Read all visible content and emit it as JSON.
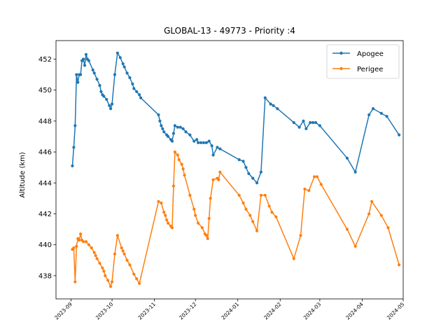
{
  "chart_data": {
    "type": "line",
    "title": "GLOBAL-13 - 49773 - Priority :4",
    "xlabel": "",
    "ylabel": "Altitude (km)",
    "ylim": [
      436.5,
      453.2
    ],
    "xlim": [
      "2023-08-21",
      "2024-05-01"
    ],
    "yticks": [
      438,
      440,
      442,
      444,
      446,
      448,
      450,
      452
    ],
    "xticks": [
      "2023-09",
      "2023-10",
      "2023-11",
      "2023-12",
      "2024-01",
      "2024-02",
      "2024-03",
      "2024-04",
      "2024-05"
    ],
    "grid": false,
    "legend_position": "top-right",
    "series": [
      {
        "name": "Apogee",
        "color": "#1f77b4",
        "points": [
          [
            "2023-09-02",
            445.1
          ],
          [
            "2023-09-03",
            446.3
          ],
          [
            "2023-09-04",
            447.7
          ],
          [
            "2023-09-05",
            451.0
          ],
          [
            "2023-09-06",
            450.5
          ],
          [
            "2023-09-07",
            451.0
          ],
          [
            "2023-09-08",
            451.0
          ],
          [
            "2023-09-09",
            451.9
          ],
          [
            "2023-09-10",
            452.0
          ],
          [
            "2023-09-11",
            451.6
          ],
          [
            "2023-09-12",
            452.3
          ],
          [
            "2023-09-13",
            452.0
          ],
          [
            "2023-09-14",
            451.9
          ],
          [
            "2023-09-17",
            451.3
          ],
          [
            "2023-09-18",
            451.1
          ],
          [
            "2023-09-20",
            450.7
          ],
          [
            "2023-09-22",
            450.3
          ],
          [
            "2023-09-23",
            449.9
          ],
          [
            "2023-09-24",
            449.7
          ],
          [
            "2023-09-25",
            449.6
          ],
          [
            "2023-09-27",
            449.4
          ],
          [
            "2023-09-29",
            449.0
          ],
          [
            "2023-09-30",
            448.8
          ],
          [
            "2023-10-01",
            449.1
          ],
          [
            "2023-10-03",
            451.0
          ],
          [
            "2023-10-05",
            452.4
          ],
          [
            "2023-10-07",
            452.1
          ],
          [
            "2023-10-09",
            451.7
          ],
          [
            "2023-10-10",
            451.5
          ],
          [
            "2023-10-12",
            451.1
          ],
          [
            "2023-10-14",
            450.8
          ],
          [
            "2023-10-16",
            450.4
          ],
          [
            "2023-10-17",
            450.1
          ],
          [
            "2023-10-19",
            449.9
          ],
          [
            "2023-10-21",
            449.7
          ],
          [
            "2023-10-22",
            449.5
          ],
          [
            "2023-11-04",
            448.4
          ],
          [
            "2023-11-05",
            448.0
          ],
          [
            "2023-11-06",
            447.7
          ],
          [
            "2023-11-07",
            447.5
          ],
          [
            "2023-11-08",
            447.3
          ],
          [
            "2023-11-10",
            447.1
          ],
          [
            "2023-11-11",
            447.0
          ],
          [
            "2023-11-13",
            446.8
          ],
          [
            "2023-11-14",
            446.7
          ],
          [
            "2023-11-15",
            447.2
          ],
          [
            "2023-11-16",
            447.7
          ],
          [
            "2023-11-18",
            447.6
          ],
          [
            "2023-11-20",
            447.6
          ],
          [
            "2023-11-22",
            447.5
          ],
          [
            "2023-11-24",
            447.3
          ],
          [
            "2023-11-27",
            447.1
          ],
          [
            "2023-11-30",
            446.7
          ],
          [
            "2023-12-02",
            446.8
          ],
          [
            "2023-12-03",
            446.6
          ],
          [
            "2023-12-05",
            446.6
          ],
          [
            "2023-12-07",
            446.6
          ],
          [
            "2023-12-09",
            446.6
          ],
          [
            "2023-12-11",
            446.7
          ],
          [
            "2023-12-13",
            446.4
          ],
          [
            "2023-12-14",
            445.8
          ],
          [
            "2023-12-17",
            446.3
          ],
          [
            "2023-12-19",
            446.2
          ],
          [
            "2024-01-02",
            445.5
          ],
          [
            "2024-01-05",
            445.4
          ],
          [
            "2024-01-07",
            445.0
          ],
          [
            "2024-01-09",
            444.6
          ],
          [
            "2024-01-12",
            444.3
          ],
          [
            "2024-01-15",
            444.0
          ],
          [
            "2024-01-18",
            444.7
          ],
          [
            "2024-01-21",
            449.5
          ],
          [
            "2024-01-25",
            449.1
          ],
          [
            "2024-01-27",
            449.0
          ],
          [
            "2024-01-30",
            448.8
          ],
          [
            "2024-02-11",
            447.9
          ],
          [
            "2024-02-15",
            447.6
          ],
          [
            "2024-02-18",
            448.0
          ],
          [
            "2024-02-20",
            447.5
          ],
          [
            "2024-02-23",
            447.9
          ],
          [
            "2024-02-25",
            447.9
          ],
          [
            "2024-02-27",
            447.9
          ],
          [
            "2024-03-01",
            447.7
          ],
          [
            "2024-03-21",
            445.6
          ],
          [
            "2024-03-27",
            444.7
          ],
          [
            "2024-04-06",
            448.4
          ],
          [
            "2024-04-09",
            448.8
          ],
          [
            "2024-04-15",
            448.5
          ],
          [
            "2024-04-19",
            448.3
          ],
          [
            "2024-04-28",
            447.1
          ]
        ]
      },
      {
        "name": "Perigee",
        "color": "#ff7f0e",
        "points": [
          [
            "2023-09-02",
            439.7
          ],
          [
            "2023-09-03",
            439.8
          ],
          [
            "2023-09-04",
            437.6
          ],
          [
            "2023-09-05",
            439.9
          ],
          [
            "2023-09-06",
            440.4
          ],
          [
            "2023-09-07",
            440.3
          ],
          [
            "2023-09-08",
            440.7
          ],
          [
            "2023-09-09",
            440.3
          ],
          [
            "2023-09-10",
            440.2
          ],
          [
            "2023-09-12",
            440.2
          ],
          [
            "2023-09-14",
            440.0
          ],
          [
            "2023-09-16",
            439.8
          ],
          [
            "2023-09-18",
            439.5
          ],
          [
            "2023-09-19",
            439.3
          ],
          [
            "2023-09-20",
            439.1
          ],
          [
            "2023-09-22",
            438.8
          ],
          [
            "2023-09-24",
            438.5
          ],
          [
            "2023-09-25",
            438.3
          ],
          [
            "2023-09-26",
            438.0
          ],
          [
            "2023-09-28",
            437.7
          ],
          [
            "2023-09-30",
            437.3
          ],
          [
            "2023-10-01",
            437.6
          ],
          [
            "2023-10-03",
            439.4
          ],
          [
            "2023-10-05",
            440.6
          ],
          [
            "2023-10-08",
            439.8
          ],
          [
            "2023-10-09",
            439.6
          ],
          [
            "2023-10-10",
            439.4
          ],
          [
            "2023-10-12",
            439.0
          ],
          [
            "2023-10-14",
            438.7
          ],
          [
            "2023-10-17",
            438.1
          ],
          [
            "2023-10-19",
            437.8
          ],
          [
            "2023-10-21",
            437.5
          ],
          [
            "2023-11-04",
            442.8
          ],
          [
            "2023-11-06",
            442.7
          ],
          [
            "2023-11-08",
            442.1
          ],
          [
            "2023-11-09",
            441.9
          ],
          [
            "2023-11-10",
            441.6
          ],
          [
            "2023-11-11",
            441.4
          ],
          [
            "2023-11-13",
            441.2
          ],
          [
            "2023-11-14",
            441.1
          ],
          [
            "2023-11-15",
            443.8
          ],
          [
            "2023-11-16",
            446.0
          ],
          [
            "2023-11-18",
            445.8
          ],
          [
            "2023-11-19",
            445.5
          ],
          [
            "2023-11-21",
            445.2
          ],
          [
            "2023-11-22",
            444.9
          ],
          [
            "2023-11-23",
            444.5
          ],
          [
            "2023-11-27",
            443.2
          ],
          [
            "2023-11-30",
            442.3
          ],
          [
            "2023-12-01",
            441.9
          ],
          [
            "2023-12-03",
            441.4
          ],
          [
            "2023-12-06",
            441.1
          ],
          [
            "2023-12-08",
            440.7
          ],
          [
            "2023-12-09",
            440.6
          ],
          [
            "2023-12-10",
            440.4
          ],
          [
            "2023-12-11",
            441.7
          ],
          [
            "2023-12-12",
            443.0
          ],
          [
            "2023-12-14",
            444.2
          ],
          [
            "2023-12-17",
            444.3
          ],
          [
            "2023-12-18",
            444.2
          ],
          [
            "2023-12-19",
            444.7
          ],
          [
            "2024-01-02",
            443.2
          ],
          [
            "2024-01-05",
            442.7
          ],
          [
            "2024-01-07",
            442.3
          ],
          [
            "2024-01-10",
            441.9
          ],
          [
            "2024-01-12",
            441.5
          ],
          [
            "2024-01-15",
            440.9
          ],
          [
            "2024-01-18",
            443.2
          ],
          [
            "2024-01-21",
            443.2
          ],
          [
            "2024-01-24",
            442.5
          ],
          [
            "2024-01-26",
            442.1
          ],
          [
            "2024-01-29",
            441.8
          ],
          [
            "2024-02-11",
            439.1
          ],
          [
            "2024-02-16",
            440.6
          ],
          [
            "2024-02-19",
            443.6
          ],
          [
            "2024-02-22",
            443.5
          ],
          [
            "2024-02-26",
            444.4
          ],
          [
            "2024-02-28",
            444.4
          ],
          [
            "2024-03-02",
            443.9
          ],
          [
            "2024-03-21",
            441.0
          ],
          [
            "2024-03-27",
            439.9
          ],
          [
            "2024-04-06",
            442.0
          ],
          [
            "2024-04-08",
            442.8
          ],
          [
            "2024-04-15",
            441.9
          ],
          [
            "2024-04-20",
            441.1
          ],
          [
            "2024-04-28",
            438.7
          ]
        ]
      }
    ]
  }
}
